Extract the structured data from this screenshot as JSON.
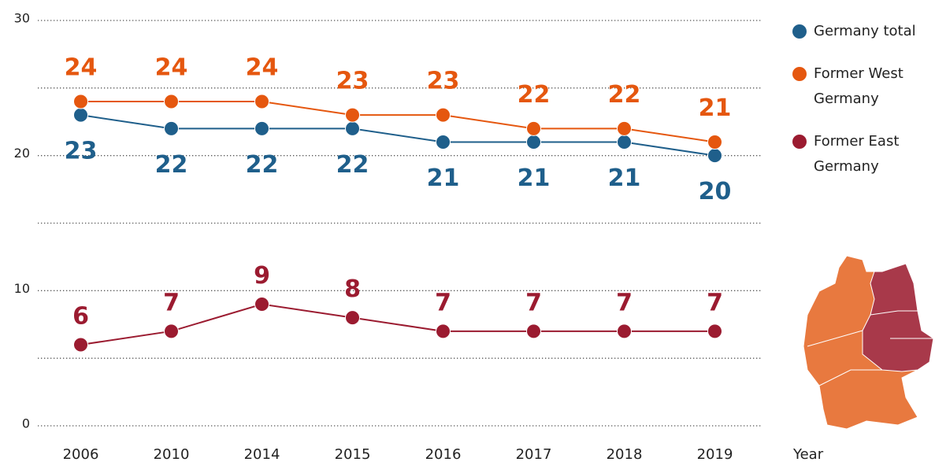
{
  "chart_data": {
    "type": "line",
    "categories": [
      "2006",
      "2010",
      "2014",
      "2015",
      "2016",
      "2017",
      "2018",
      "2019"
    ],
    "series": [
      {
        "name": "Germany total",
        "color": "#1f5f8b",
        "values": [
          23,
          22,
          22,
          22,
          21,
          21,
          21,
          20
        ]
      },
      {
        "name": "Former West Germany",
        "color": "#e5570f",
        "values": [
          24,
          24,
          24,
          23,
          23,
          22,
          22,
          21
        ]
      },
      {
        "name": "Former East Germany",
        "color": "#9b1b30",
        "values": [
          6,
          7,
          9,
          8,
          7,
          7,
          7,
          7
        ]
      }
    ],
    "x_label": "Year",
    "ylim": [
      0,
      30
    ],
    "yticks": [
      0,
      10,
      20,
      30
    ],
    "minor_yticks": [
      5,
      15,
      25
    ],
    "grid": true,
    "legend": "right"
  }
}
